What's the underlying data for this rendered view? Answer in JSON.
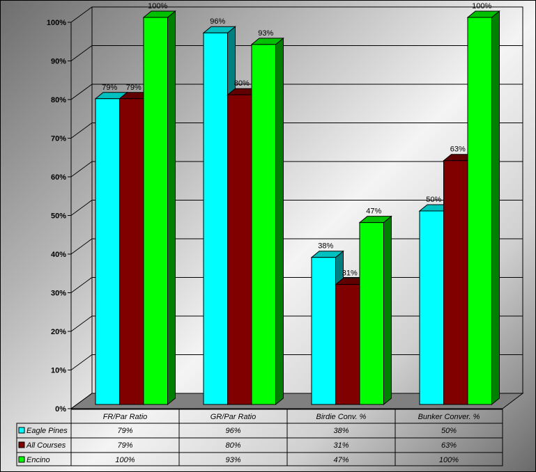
{
  "chart_data": {
    "type": "bar",
    "categories": [
      "FR/Par Ratio",
      "GR/Par Ratio",
      "Birdie Conv. %",
      "Bunker Conver. %"
    ],
    "series": [
      {
        "name": "Eagle Pines",
        "values": [
          79,
          96,
          38,
          50
        ],
        "color": "#00ffff",
        "side": "#008080",
        "top": "#00c0c0"
      },
      {
        "name": "All Courses",
        "values": [
          79,
          80,
          31,
          63
        ],
        "color": "#800000",
        "side": "#400000",
        "top": "#600000"
      },
      {
        "name": "Encino",
        "values": [
          100,
          93,
          47,
          100
        ],
        "color": "#00ff00",
        "side": "#008000",
        "top": "#00c000"
      }
    ],
    "data_labels": [
      [
        "79%",
        "96%",
        "38%",
        "50%"
      ],
      [
        "79%",
        "80%",
        "31%",
        "63%"
      ],
      [
        "100%",
        "93%",
        "47%",
        "100%"
      ]
    ],
    "ylim": [
      0,
      100
    ],
    "yticks": [
      "0%",
      "10%",
      "20%",
      "30%",
      "40%",
      "50%",
      "60%",
      "70%",
      "80%",
      "90%",
      "100%"
    ],
    "grid": true,
    "legend": "data-table-left",
    "style": "3d-clustered"
  }
}
